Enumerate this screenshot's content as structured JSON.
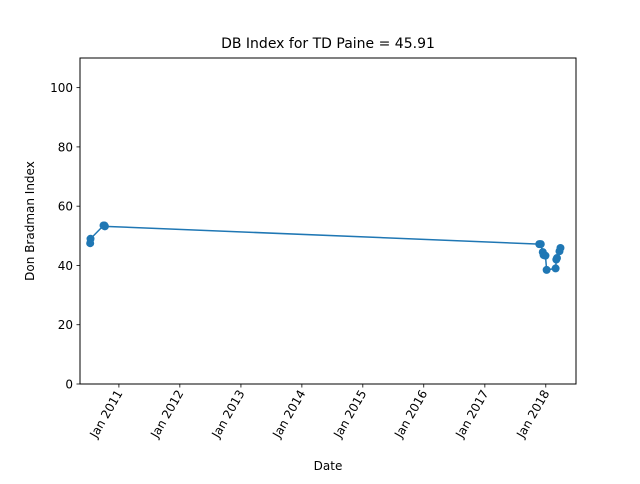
{
  "chart_data": {
    "type": "line",
    "title": "DB Index for TD Paine = 45.91",
    "xlabel": "Date",
    "ylabel": "Don Bradman Index",
    "xlim": [
      "2010-05-13",
      "2018-07-01"
    ],
    "ylim": [
      0,
      110
    ],
    "x_ticks": [
      {
        "date": "2011-01-01",
        "label": "Jan 2011"
      },
      {
        "date": "2012-01-01",
        "label": "Jan 2012"
      },
      {
        "date": "2013-01-01",
        "label": "Jan 2013"
      },
      {
        "date": "2014-01-01",
        "label": "Jan 2014"
      },
      {
        "date": "2015-01-01",
        "label": "Jan 2015"
      },
      {
        "date": "2016-01-01",
        "label": "Jan 2016"
      },
      {
        "date": "2017-01-01",
        "label": "Jan 2017"
      },
      {
        "date": "2018-01-01",
        "label": "Jan 2018"
      }
    ],
    "y_ticks": [
      0,
      20,
      40,
      60,
      80,
      100
    ],
    "grid": false,
    "legend": "none",
    "color": "#1f77b4",
    "series": [
      {
        "x": [
          "2010-07-13",
          "2010-07-15",
          "2010-10-01",
          "2010-10-06",
          "2010-10-09",
          "2017-11-23",
          "2017-12-02",
          "2017-12-14",
          "2017-12-19",
          "2017-12-30",
          "2018-01-06",
          "2018-03-01",
          "2018-03-05",
          "2018-03-09",
          "2018-03-24",
          "2018-03-30"
        ],
        "y": [
          47.5,
          49.0,
          53.5,
          53.5,
          53.2,
          47.2,
          47.2,
          44.5,
          43.5,
          43.3,
          38.5,
          39.0,
          42.0,
          42.5,
          44.8,
          45.9
        ]
      }
    ]
  }
}
